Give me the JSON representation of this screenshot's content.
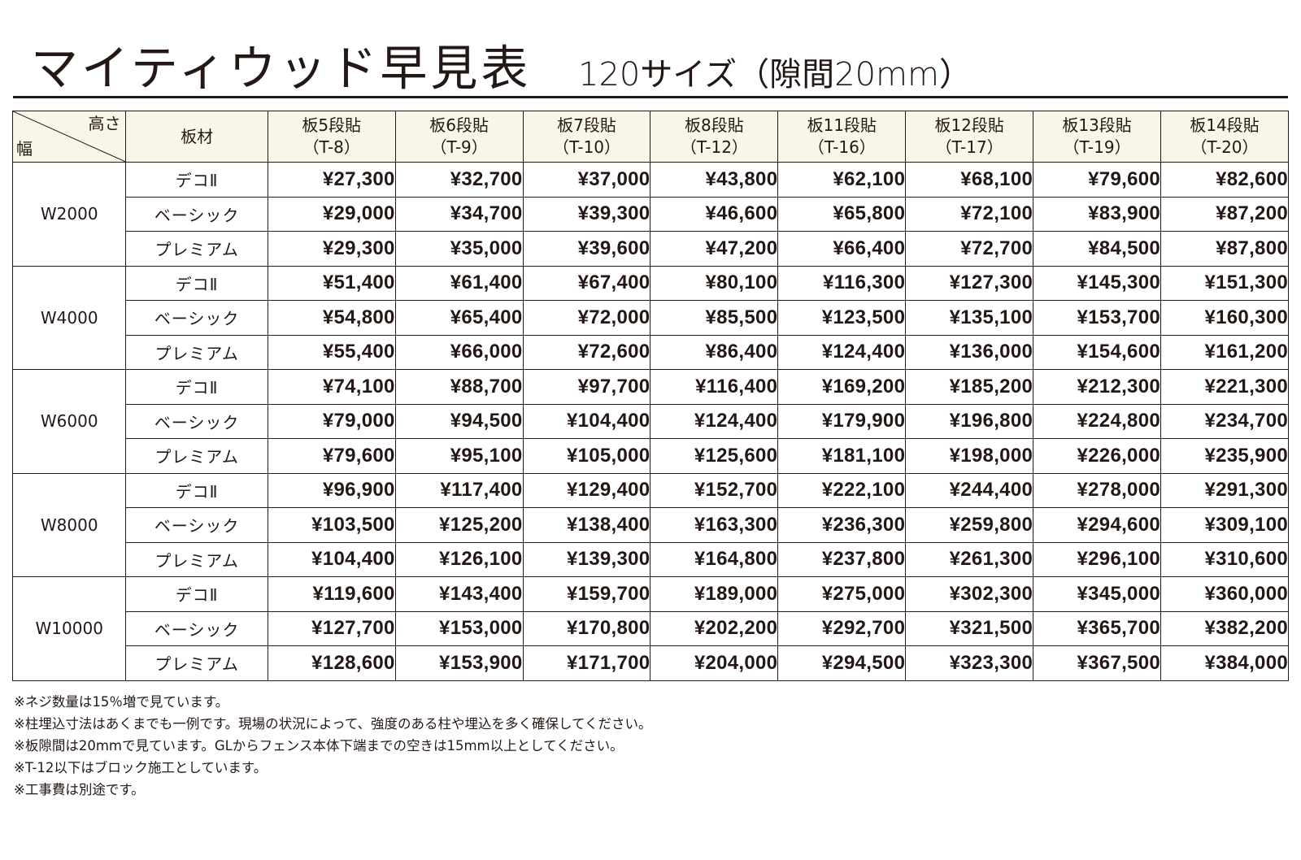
{
  "title": {
    "main": "マイティウッド早見表",
    "sub": "120サイズ（隙間20mm）"
  },
  "table": {
    "corner": {
      "height_label": "高さ",
      "width_label": "幅"
    },
    "material_header": "板材",
    "columns": [
      {
        "label": "板5段貼",
        "code": "（T-8）"
      },
      {
        "label": "板6段貼",
        "code": "（T-9）"
      },
      {
        "label": "板7段貼",
        "code": "（T-10）"
      },
      {
        "label": "板8段貼",
        "code": "（T-12）"
      },
      {
        "label": "板11段貼",
        "code": "（T-16）"
      },
      {
        "label": "板12段貼",
        "code": "（T-17）"
      },
      {
        "label": "板13段貼",
        "code": "（T-19）"
      },
      {
        "label": "板14段貼",
        "code": "（T-20）"
      }
    ],
    "groups": [
      {
        "width": "W2000",
        "rows": [
          {
            "material": "デコⅡ",
            "prices": [
              "¥27,300",
              "¥32,700",
              "¥37,000",
              "¥43,800",
              "¥62,100",
              "¥68,100",
              "¥79,600",
              "¥82,600"
            ]
          },
          {
            "material": "ベーシック",
            "prices": [
              "¥29,000",
              "¥34,700",
              "¥39,300",
              "¥46,600",
              "¥65,800",
              "¥72,100",
              "¥83,900",
              "¥87,200"
            ]
          },
          {
            "material": "プレミアム",
            "prices": [
              "¥29,300",
              "¥35,000",
              "¥39,600",
              "¥47,200",
              "¥66,400",
              "¥72,700",
              "¥84,500",
              "¥87,800"
            ]
          }
        ]
      },
      {
        "width": "W4000",
        "rows": [
          {
            "material": "デコⅡ",
            "prices": [
              "¥51,400",
              "¥61,400",
              "¥67,400",
              "¥80,100",
              "¥116,300",
              "¥127,300",
              "¥145,300",
              "¥151,300"
            ]
          },
          {
            "material": "ベーシック",
            "prices": [
              "¥54,800",
              "¥65,400",
              "¥72,000",
              "¥85,500",
              "¥123,500",
              "¥135,100",
              "¥153,700",
              "¥160,300"
            ]
          },
          {
            "material": "プレミアム",
            "prices": [
              "¥55,400",
              "¥66,000",
              "¥72,600",
              "¥86,400",
              "¥124,400",
              "¥136,000",
              "¥154,600",
              "¥161,200"
            ]
          }
        ]
      },
      {
        "width": "W6000",
        "rows": [
          {
            "material": "デコⅡ",
            "prices": [
              "¥74,100",
              "¥88,700",
              "¥97,700",
              "¥116,400",
              "¥169,200",
              "¥185,200",
              "¥212,300",
              "¥221,300"
            ]
          },
          {
            "material": "ベーシック",
            "prices": [
              "¥79,000",
              "¥94,500",
              "¥104,400",
              "¥124,400",
              "¥179,900",
              "¥196,800",
              "¥224,800",
              "¥234,700"
            ]
          },
          {
            "material": "プレミアム",
            "prices": [
              "¥79,600",
              "¥95,100",
              "¥105,000",
              "¥125,600",
              "¥181,100",
              "¥198,000",
              "¥226,000",
              "¥235,900"
            ]
          }
        ]
      },
      {
        "width": "W8000",
        "rows": [
          {
            "material": "デコⅡ",
            "prices": [
              "¥96,900",
              "¥117,400",
              "¥129,400",
              "¥152,700",
              "¥222,100",
              "¥244,400",
              "¥278,000",
              "¥291,300"
            ]
          },
          {
            "material": "ベーシック",
            "prices": [
              "¥103,500",
              "¥125,200",
              "¥138,400",
              "¥163,300",
              "¥236,300",
              "¥259,800",
              "¥294,600",
              "¥309,100"
            ]
          },
          {
            "material": "プレミアム",
            "prices": [
              "¥104,400",
              "¥126,100",
              "¥139,300",
              "¥164,800",
              "¥237,800",
              "¥261,300",
              "¥296,100",
              "¥310,600"
            ]
          }
        ]
      },
      {
        "width": "W10000",
        "rows": [
          {
            "material": "デコⅡ",
            "prices": [
              "¥119,600",
              "¥143,400",
              "¥159,700",
              "¥189,000",
              "¥275,000",
              "¥302,300",
              "¥345,000",
              "¥360,000"
            ]
          },
          {
            "material": "ベーシック",
            "prices": [
              "¥127,700",
              "¥153,000",
              "¥170,800",
              "¥202,200",
              "¥292,700",
              "¥321,500",
              "¥365,700",
              "¥382,200"
            ]
          },
          {
            "material": "プレミアム",
            "prices": [
              "¥128,600",
              "¥153,900",
              "¥171,700",
              "¥204,000",
              "¥294,500",
              "¥323,300",
              "¥367,500",
              "¥384,000"
            ]
          }
        ]
      }
    ]
  },
  "notes": [
    "※ネジ数量は15％増で見ています。",
    "※柱埋込寸法はあくまでも一例です。現場の状況によって、強度のある柱や埋込を多く確保してください。",
    "※板隙間は20mmで見ています。GLからフェンス本体下端までの空きは15mm以上としてください。",
    "※T-12以下はブロック施工としています。",
    "※工事費は別途です。"
  ],
  "colors": {
    "header_bg": "#f8f6e6",
    "text": "#231815",
    "border": "#231815"
  }
}
